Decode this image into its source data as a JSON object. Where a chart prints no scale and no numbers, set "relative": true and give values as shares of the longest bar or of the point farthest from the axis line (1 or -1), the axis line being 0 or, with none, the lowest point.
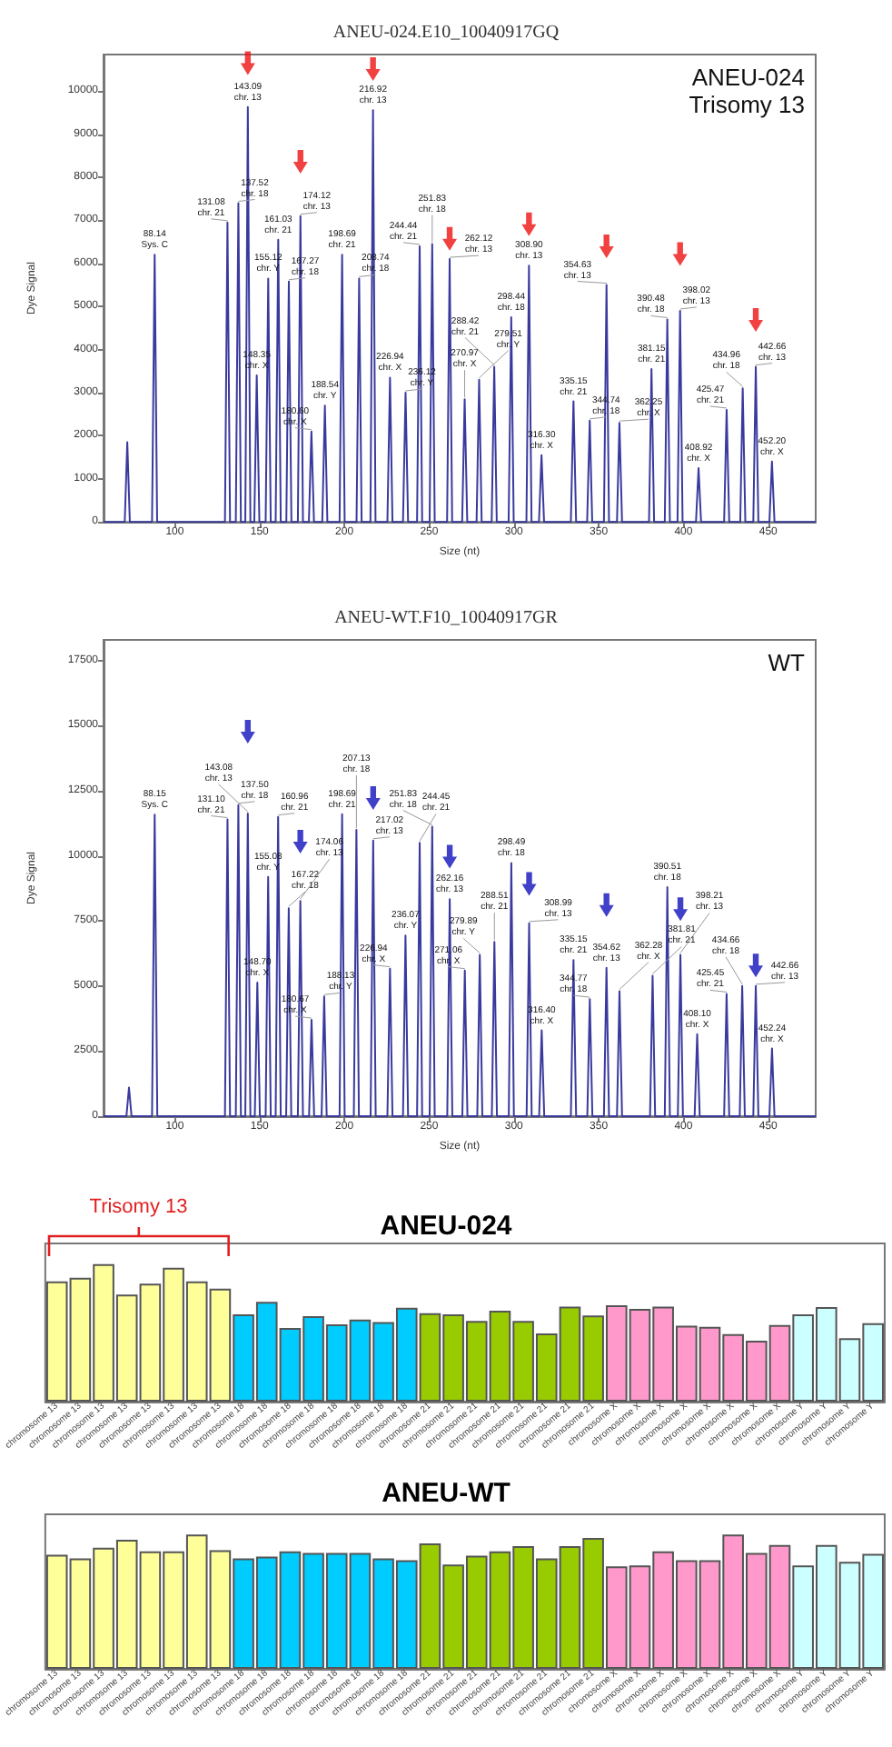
{
  "chart_data": [
    {
      "type": "line",
      "title": "ANEU-024.E10_10040917GQ",
      "xlabel": "Size (nt)",
      "ylabel": "Dye Signal",
      "xlim": [
        58,
        478
      ],
      "xticks": [
        100,
        150,
        200,
        250,
        300,
        350,
        400,
        450
      ],
      "ylim": [
        0,
        10850
      ],
      "yticks": [
        0,
        1000,
        2000,
        3000,
        4000,
        5000,
        6000,
        7000,
        8000,
        9000,
        10000
      ],
      "series": [
        {
          "color": "#3a3a9e",
          "x": [
            58,
            70.5,
            72,
            73.5,
            86.6,
            88.14,
            89.6,
            129.6,
            131.08,
            132.6,
            136,
            137.52,
            139,
            141.6,
            143.09,
            144.6,
            146.9,
            148.35,
            149.9,
            153.6,
            155.12,
            156.6,
            159.5,
            161.03,
            162.5,
            165.8,
            167.27,
            168.8,
            172.6,
            174.12,
            175.6,
            179.1,
            180.6,
            182.1,
            187,
            188.54,
            190,
            197.2,
            198.69,
            200.2,
            207.2,
            208.74,
            210.2,
            215.4,
            216.92,
            218.4,
            225.4,
            226.94,
            228.4,
            234.6,
            236.12,
            237.6,
            242.9,
            244.44,
            245.9,
            250.3,
            251.83,
            253.3,
            260.6,
            262.12,
            263.6,
            269.5,
            270.97,
            272.5,
            278,
            279.51,
            281,
            286.9,
            288.42,
            289.9,
            296.9,
            298.44,
            299.9,
            307.4,
            308.9,
            310.4,
            314.8,
            316.3,
            317.8,
            333.6,
            335.15,
            336.7,
            343.2,
            344.74,
            346.2,
            353.1,
            354.63,
            356.1,
            360.8,
            362.25,
            363.8,
            379.7,
            381.15,
            382.7,
            389,
            390.48,
            392,
            396.5,
            398.02,
            399.5,
            407.4,
            408.92,
            410.4,
            424,
            425.47,
            427,
            433.5,
            434.96,
            436.5,
            441.2,
            442.66,
            444.2,
            450.7,
            452.2,
            453.7,
            478
          ],
          "values": [
            0,
            0,
            1850,
            0,
            0,
            6200,
            0,
            0,
            6950,
            0,
            0,
            7400,
            0,
            0,
            9630,
            0,
            0,
            3400,
            0,
            0,
            5650,
            0,
            0,
            6550,
            0,
            0,
            5580,
            0,
            0,
            7100,
            0,
            0,
            2100,
            0,
            0,
            2700,
            0,
            0,
            6200,
            0,
            0,
            5650,
            0,
            0,
            9560,
            0,
            0,
            3350,
            0,
            0,
            3000,
            0,
            0,
            6400,
            0,
            0,
            6450,
            0,
            0,
            6100,
            0,
            0,
            2850,
            0,
            0,
            3300,
            0,
            0,
            3600,
            0,
            0,
            4750,
            0,
            0,
            5950,
            0,
            0,
            1550,
            0,
            0,
            2800,
            0,
            0,
            2350,
            0,
            0,
            5500,
            0,
            0,
            2300,
            0,
            0,
            3550,
            0,
            0,
            4700,
            0,
            0,
            4900,
            0,
            0,
            1250,
            0,
            0,
            2600,
            0,
            0,
            3100,
            0,
            0,
            3600,
            0,
            0,
            1400,
            0,
            0
          ]
        },
        {
          "type": "scatter",
          "color": "#ee1111",
          "x": [
            143.09,
            174.12,
            216.92,
            262.12,
            308.9,
            354.63,
            398.02,
            442.66
          ],
          "values": [
            10650,
            8360,
            10510,
            6570,
            6910,
            6400,
            6220,
            4690
          ]
        }
      ],
      "annotations": [
        "ANEU-024",
        "Trisomy 13",
        {
          "text": "88.14\nSys. C",
          "x": 88.14,
          "y": 6200
        },
        {
          "text": "131.08\nchr. 21",
          "x": 131.08,
          "y": 6950
        },
        {
          "text": "137.52\nchr. 18",
          "x": 137.52,
          "y": 7400
        },
        {
          "text": "143.09\nchr. 13",
          "x": 143.09,
          "y": 9630
        },
        {
          "text": "148.35\nchr. X",
          "x": 148.35,
          "y": 3400
        },
        {
          "text": "155.12\nchr. Y",
          "x": 155.12,
          "y": 5650
        },
        {
          "text": "161.03\nchr. 21",
          "x": 161.03,
          "y": 6550
        },
        {
          "text": "167.27\nchr. 18",
          "x": 167.27,
          "y": 5580
        },
        {
          "text": "174.12\nchr. 13",
          "x": 174.12,
          "y": 7100
        },
        {
          "text": "180.60\nchr. X",
          "x": 180.6,
          "y": 2100
        },
        {
          "text": "188.54\nchr. Y",
          "x": 188.54,
          "y": 2700
        },
        {
          "text": "198.69\nchr. 21",
          "x": 198.69,
          "y": 6200
        },
        {
          "text": "208.74\nchr. 18",
          "x": 208.74,
          "y": 5650
        },
        {
          "text": "216.92\nchr. 13",
          "x": 216.92,
          "y": 9560
        },
        {
          "text": "226.94\nchr. X",
          "x": 226.94,
          "y": 3350
        },
        {
          "text": "236.12\nchr. Y",
          "x": 236.12,
          "y": 3000
        },
        {
          "text": "244.44\nchr. 21",
          "x": 244.44,
          "y": 6400
        },
        {
          "text": "251.83\nchr. 18",
          "x": 251.83,
          "y": 6450
        },
        {
          "text": "262.12\nchr. 13",
          "x": 262.12,
          "y": 6100
        },
        {
          "text": "270.97\nchr. X",
          "x": 270.97,
          "y": 2850
        },
        {
          "text": "279.51\nchr. Y",
          "x": 279.51,
          "y": 3300
        },
        {
          "text": "288.42\nchr. 21",
          "x": 288.42,
          "y": 3600
        },
        {
          "text": "298.44\nchr. 18",
          "x": 298.44,
          "y": 4750
        },
        {
          "text": "308.90\nchr. 13",
          "x": 308.9,
          "y": 5950
        },
        {
          "text": "316.30\nchr. X",
          "x": 316.3,
          "y": 1550
        },
        {
          "text": "335.15\nchr. 21",
          "x": 335.15,
          "y": 2800
        },
        {
          "text": "344.74\nchr. 18",
          "x": 344.74,
          "y": 2350
        },
        {
          "text": "354.63\nchr. 13",
          "x": 354.63,
          "y": 5500
        },
        {
          "text": "362.25\nchr. X",
          "x": 362.25,
          "y": 2300
        },
        {
          "text": "381.15\nchr. 21",
          "x": 381.15,
          "y": 3550
        },
        {
          "text": "390.48\nchr. 18",
          "x": 390.48,
          "y": 4700
        },
        {
          "text": "398.02\nchr. 13",
          "x": 398.02,
          "y": 4900
        },
        {
          "text": "408.92\nchr. X",
          "x": 408.92,
          "y": 1250
        },
        {
          "text": "425.47\nchr. 21",
          "x": 425.47,
          "y": 2600
        },
        {
          "text": "434.96\nchr. 18",
          "x": 434.96,
          "y": 3100
        },
        {
          "text": "442.66\nchr. 13",
          "x": 442.66,
          "y": 3600
        },
        {
          "text": "452.20\nchr. X",
          "x": 452.2,
          "y": 1400
        }
      ]
    },
    {
      "type": "line",
      "title": "ANEU-WT.F10_10040917GR",
      "xlabel": "Size (nt)",
      "ylabel": "Dye Signal",
      "xlim": [
        58,
        478
      ],
      "xticks": [
        100,
        150,
        200,
        250,
        300,
        350,
        400,
        450
      ],
      "ylim": [
        0,
        18300
      ],
      "yticks": [
        0,
        2500,
        5000,
        7500,
        10000,
        12500,
        15000,
        17500
      ],
      "series": [
        {
          "color": "#3a3a9e",
          "x": [
            58,
            71.5,
            73,
            74.5,
            86.6,
            88.15,
            89.7,
            129.6,
            131.1,
            132.6,
            136,
            137.5,
            139,
            141.6,
            143.08,
            144.6,
            147.2,
            148.7,
            150.2,
            153.6,
            155.08,
            156.6,
            159.5,
            160.96,
            162.5,
            165.7,
            167.22,
            168.7,
            172.6,
            174.06,
            175.6,
            179.2,
            180.67,
            182.2,
            186.6,
            188.13,
            189.6,
            197.2,
            198.69,
            200.2,
            205.6,
            207.13,
            208.6,
            215.5,
            217.02,
            218.5,
            225.4,
            226.94,
            228.4,
            234.6,
            236.07,
            237.6,
            242.9,
            244.45,
            245.9,
            250.3,
            251.83,
            253.3,
            260.7,
            262.16,
            263.7,
            269.6,
            271.06,
            272.6,
            278.4,
            279.89,
            281.4,
            287,
            288.51,
            290,
            297,
            298.49,
            300,
            307.5,
            308.99,
            310.5,
            314.9,
            316.4,
            317.9,
            333.6,
            335.15,
            336.7,
            343.3,
            344.77,
            346.3,
            353.1,
            354.62,
            356.1,
            360.8,
            362.28,
            363.8,
            380.3,
            381.81,
            383.3,
            389,
            390.51,
            392,
            396.7,
            398.21,
            399.7,
            406.6,
            408.1,
            409.6,
            424,
            425.45,
            427,
            433.2,
            434.66,
            436.2,
            441.2,
            442.66,
            444.2,
            450.7,
            452.24,
            453.7,
            478
          ],
          "values": [
            0,
            0,
            1100,
            0,
            0,
            11590,
            0,
            0,
            11400,
            0,
            0,
            11950,
            0,
            0,
            11630,
            0,
            0,
            5130,
            0,
            0,
            9190,
            0,
            0,
            11500,
            0,
            0,
            7990,
            0,
            0,
            8270,
            0,
            0,
            3700,
            0,
            0,
            4600,
            0,
            0,
            11600,
            0,
            0,
            11000,
            0,
            0,
            10590,
            0,
            0,
            5670,
            0,
            0,
            6940,
            0,
            0,
            10500,
            0,
            0,
            11120,
            0,
            0,
            8340,
            0,
            0,
            5600,
            0,
            0,
            6200,
            0,
            0,
            6700,
            0,
            0,
            9730,
            0,
            0,
            7410,
            0,
            0,
            3300,
            0,
            0,
            6000,
            0,
            0,
            4500,
            0,
            0,
            5700,
            0,
            0,
            4800,
            0,
            0,
            5400,
            0,
            0,
            8800,
            0,
            0,
            6200,
            0,
            0,
            3150,
            0,
            0,
            4700,
            0,
            0,
            5000,
            0,
            0,
            5000,
            0,
            0,
            2600,
            0,
            0
          ]
        },
        {
          "type": "scatter",
          "color": "#1010bb",
          "x": [
            143.08,
            174.06,
            217.02,
            262.16,
            308.99,
            354.62,
            398.21,
            442.66
          ],
          "values": [
            14770,
            10550,
            12220,
            9970,
            8920,
            8110,
            7950,
            5790
          ]
        }
      ],
      "annotations": [
        "WT",
        {
          "text": "88.15\nSys. C",
          "x": 88.15,
          "y": 11590
        },
        {
          "text": "131.10\nchr. 21",
          "x": 131.1,
          "y": 11400
        },
        {
          "text": "137.50\nchr. 18",
          "x": 137.5,
          "y": 11950
        },
        {
          "text": "143.08\nchr. 13",
          "x": 143.08,
          "y": 11630
        },
        {
          "text": "148.70\nchr. X",
          "x": 148.7,
          "y": 5130
        },
        {
          "text": "155.08\nchr. Y",
          "x": 155.08,
          "y": 9190
        },
        {
          "text": "160.96\nchr. 21",
          "x": 160.96,
          "y": 11500
        },
        {
          "text": "167.22\nchr. 18",
          "x": 167.22,
          "y": 7990
        },
        {
          "text": "174.06\nchr. 13",
          "x": 174.06,
          "y": 8270
        },
        {
          "text": "180.67\nchr. X",
          "x": 180.67,
          "y": 3700
        },
        {
          "text": "188.13\nchr. Y",
          "x": 188.13,
          "y": 4600
        },
        {
          "text": "198.69\nchr. 21",
          "x": 198.69,
          "y": 11600
        },
        {
          "text": "207.13\nchr. 18",
          "x": 207.13,
          "y": 11000
        },
        {
          "text": "217.02\nchr. 13",
          "x": 217.02,
          "y": 10590
        },
        {
          "text": "226.94\nchr. X",
          "x": 226.94,
          "y": 5670
        },
        {
          "text": "236.07\nchr. Y",
          "x": 236.07,
          "y": 6940
        },
        {
          "text": "244.45\nchr. 21",
          "x": 244.45,
          "y": 10500
        },
        {
          "text": "251.83\nchr. 18",
          "x": 251.83,
          "y": 11120
        },
        {
          "text": "262.16\nchr. 13",
          "x": 262.16,
          "y": 8340
        },
        {
          "text": "271.06\nchr. X",
          "x": 271.06,
          "y": 5600
        },
        {
          "text": "279.89\nchr. Y",
          "x": 279.89,
          "y": 6200
        },
        {
          "text": "288.51\nchr. 21",
          "x": 288.51,
          "y": 6700
        },
        {
          "text": "298.49\nchr. 18",
          "x": 298.49,
          "y": 9730
        },
        {
          "text": "308.99\nchr. 13",
          "x": 308.99,
          "y": 7410
        },
        {
          "text": "316.40\nchr. X",
          "x": 316.4,
          "y": 3300
        },
        {
          "text": "335.15\nchr. 21",
          "x": 335.15,
          "y": 6000
        },
        {
          "text": "344.77\nchr. 18",
          "x": 344.77,
          "y": 4500
        },
        {
          "text": "354.62\nchr. 13",
          "x": 354.62,
          "y": 5700
        },
        {
          "text": "362.28\nchr. X",
          "x": 362.28,
          "y": 4800
        },
        {
          "text": "381.81\nchr. 21",
          "x": 381.81,
          "y": 5400
        },
        {
          "text": "390.51\nchr. 18",
          "x": 390.51,
          "y": 8800
        },
        {
          "text": "398.21\nchr. 13",
          "x": 398.21,
          "y": 6200
        },
        {
          "text": "408.10\nchr. X",
          "x": 408.1,
          "y": 3150
        },
        {
          "text": "425.45\nchr. 21",
          "x": 425.45,
          "y": 4700
        },
        {
          "text": "434.66\nchr. 18",
          "x": 434.66,
          "y": 5000
        },
        {
          "text": "442.66\nchr. 13",
          "x": 442.66,
          "y": 5000
        },
        {
          "text": "452.24\nchr. X",
          "x": 452.24,
          "y": 2600
        }
      ]
    },
    {
      "type": "bar",
      "title": "ANEU-024",
      "relative": true,
      "annotations": [
        "Trisomy 13"
      ],
      "categories": [
        "chromosome 13",
        "chromosome 13",
        "chromosome 13",
        "chromosome 13",
        "chromosome 13",
        "chromosome 13",
        "chromosome 13",
        "chromosome 13",
        "chromosome 18",
        "chromosome 18",
        "chromosome 18",
        "chromosome 18",
        "chromosome 18",
        "chromosome 18",
        "chromosome 18",
        "chromosome 18",
        "chromosome 21",
        "chromosome 21",
        "chromosome 21",
        "chromosome 21",
        "chromosome 21",
        "chromosome 21",
        "chromosome 21",
        "chromosome 21",
        "chromosome X",
        "chromosome X",
        "chromosome X",
        "chromosome X",
        "chromosome X",
        "chromosome X",
        "chromosome X",
        "chromosome X",
        "chromosome Y",
        "chromosome Y",
        "chromosome Y",
        "chromosome Y"
      ],
      "values": [
        0.874,
        0.9,
        1,
        0.778,
        0.857,
        0.974,
        0.874,
        0.822,
        0.635,
        0.726,
        0.535,
        0.622,
        0.561,
        0.596,
        0.578,
        0.683,
        0.643,
        0.635,
        0.587,
        0.661,
        0.587,
        0.496,
        0.691,
        0.626,
        0.7,
        0.674,
        0.691,
        0.552,
        0.543,
        0.491,
        0.443,
        0.557,
        0.635,
        0.687,
        0.461,
        0.57
      ],
      "colors": [
        "#ffff99",
        "#ffff99",
        "#ffff99",
        "#ffff99",
        "#ffff99",
        "#ffff99",
        "#ffff99",
        "#ffff99",
        "#00ccff",
        "#00ccff",
        "#00ccff",
        "#00ccff",
        "#00ccff",
        "#00ccff",
        "#00ccff",
        "#00ccff",
        "#99cc00",
        "#99cc00",
        "#99cc00",
        "#99cc00",
        "#99cc00",
        "#99cc00",
        "#99cc00",
        "#99cc00",
        "#ff99cc",
        "#ff99cc",
        "#ff99cc",
        "#ff99cc",
        "#ff99cc",
        "#ff99cc",
        "#ff99cc",
        "#ff99cc",
        "#ccffff",
        "#ccffff",
        "#ccffff",
        "#ccffff"
      ]
    },
    {
      "type": "bar",
      "title": "ANEU-WT",
      "relative": true,
      "categories": [
        "chromosome 13",
        "chromosome 13",
        "chromosome 13",
        "chromosome 13",
        "chromosome 13",
        "chromosome 13",
        "chromosome 13",
        "chromosome 13",
        "chromosome 18",
        "chromosome 18",
        "chromosome 18",
        "chromosome 18",
        "chromosome 18",
        "chromosome 18",
        "chromosome 18",
        "chromosome 18",
        "chromosome 21",
        "chromosome 21",
        "chromosome 21",
        "chromosome 21",
        "chromosome 21",
        "chromosome 21",
        "chromosome 21",
        "chromosome 21",
        "chromosome X",
        "chromosome X",
        "chromosome X",
        "chromosome X",
        "chromosome X",
        "chromosome X",
        "chromosome X",
        "chromosome X",
        "chromosome Y",
        "chromosome Y",
        "chromosome Y",
        "chromosome Y"
      ],
      "values": [
        0.849,
        0.822,
        0.901,
        0.961,
        0.875,
        0.875,
        1,
        0.882,
        0.822,
        0.836,
        0.875,
        0.862,
        0.862,
        0.862,
        0.822,
        0.809,
        0.934,
        0.776,
        0.842,
        0.875,
        0.914,
        0.822,
        0.914,
        0.974,
        0.763,
        0.77,
        0.875,
        0.809,
        0.809,
        1,
        0.862,
        0.921,
        0.77,
        0.921,
        0.796,
        0.855
      ],
      "colors": [
        "#ffff99",
        "#ffff99",
        "#ffff99",
        "#ffff99",
        "#ffff99",
        "#ffff99",
        "#ffff99",
        "#ffff99",
        "#00ccff",
        "#00ccff",
        "#00ccff",
        "#00ccff",
        "#00ccff",
        "#00ccff",
        "#00ccff",
        "#00ccff",
        "#99cc00",
        "#99cc00",
        "#99cc00",
        "#99cc00",
        "#99cc00",
        "#99cc00",
        "#99cc00",
        "#99cc00",
        "#ff99cc",
        "#ff99cc",
        "#ff99cc",
        "#ff99cc",
        "#ff99cc",
        "#ff99cc",
        "#ff99cc",
        "#ff99cc",
        "#ccffff",
        "#ccffff",
        "#ccffff",
        "#ccffff"
      ]
    }
  ]
}
